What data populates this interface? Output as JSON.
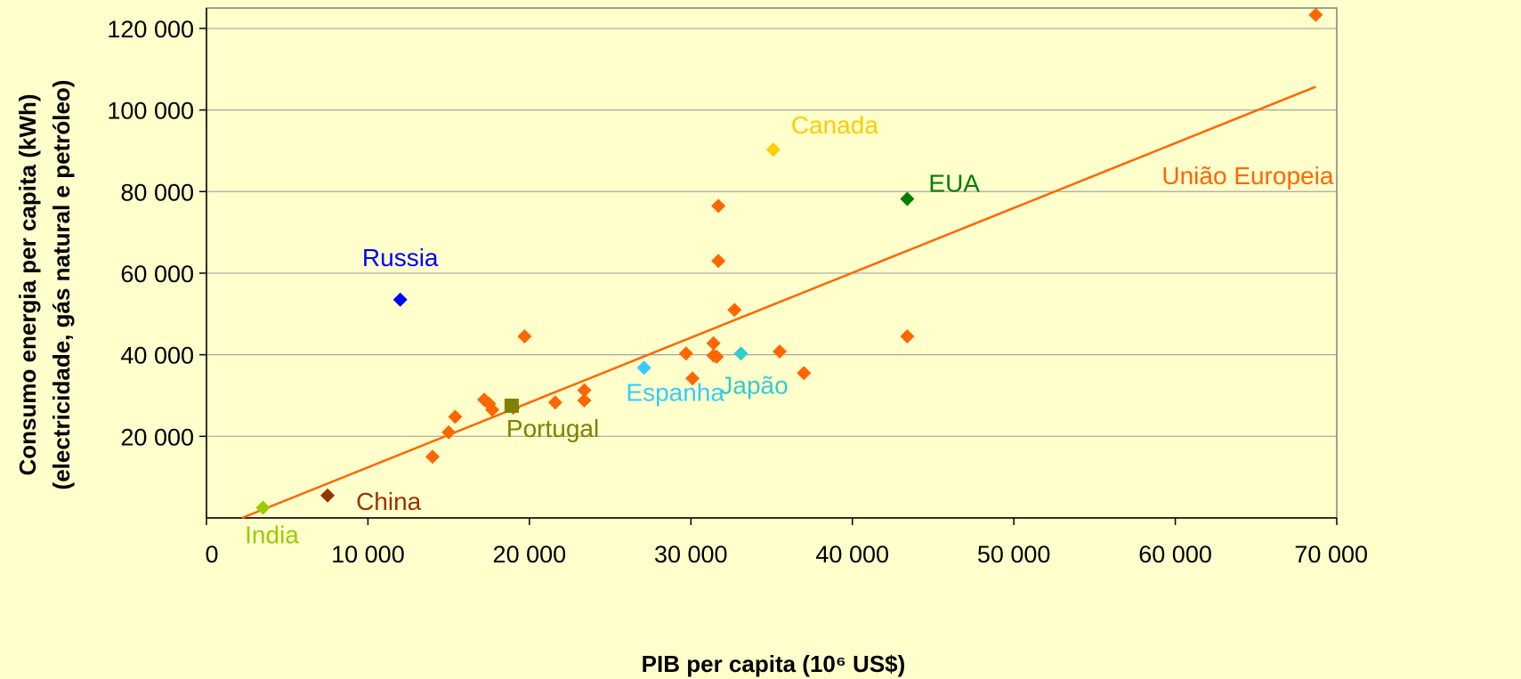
{
  "chart_data": {
    "type": "scatter",
    "xlabel": "PIB per capita (10⁶ US$)",
    "ylabel_line1": "Consumo energia per capita (kWh)",
    "ylabel_line2": "(electricidade, gás natural e petróleo)",
    "xlim": [
      0,
      70000
    ],
    "ylim": [
      0,
      125000
    ],
    "x_ticks": [
      0,
      10000,
      20000,
      30000,
      40000,
      50000,
      60000,
      70000
    ],
    "x_tick_labels": [
      "0",
      "10 000",
      "20 000",
      "30 000",
      "40 000",
      "50 000",
      "60 000",
      "70 000"
    ],
    "y_ticks": [
      20000,
      40000,
      60000,
      80000,
      100000,
      120000
    ],
    "y_tick_labels": [
      "20 000",
      "40 000",
      "60 000",
      "80 000",
      "100 000",
      "120 000"
    ],
    "grid": "horizontal",
    "trendline": {
      "x": [
        2200,
        68700
      ],
      "y": [
        0,
        105700
      ],
      "color": "#ff6600"
    },
    "labeled_points": [
      {
        "label": "Russia",
        "x": 12000,
        "y": 53500,
        "color": "#0000ff",
        "label_color": "#0000ff",
        "marker": "diamond"
      },
      {
        "label": "Canada",
        "x": 35100,
        "y": 90300,
        "color": "#ffcc00",
        "label_color": "#ffcc00",
        "marker": "diamond"
      },
      {
        "label": "EUA",
        "x": 43400,
        "y": 78200,
        "color": "#008000",
        "label_color": "#008000",
        "marker": "diamond"
      },
      {
        "label": "União Europeia",
        "x": 68700,
        "y": 123300,
        "color": "#ff6600",
        "label_color": "#ff6600",
        "marker": "diamond"
      },
      {
        "label": "Espanha",
        "x": 27100,
        "y": 36800,
        "color": "#33ccff",
        "label_color": "#33ccff",
        "marker": "diamond"
      },
      {
        "label": "Japão",
        "x": 33100,
        "y": 40300,
        "color": "#33cccc",
        "label_color": "#33cccc",
        "marker": "diamond"
      },
      {
        "label": "Portugal",
        "x": 18900,
        "y": 27500,
        "color": "#808000",
        "label_color": "#808000",
        "marker": "square"
      },
      {
        "label": "China",
        "x": 7500,
        "y": 5500,
        "color": "#993300",
        "label_color": "#993300",
        "marker": "diamond"
      },
      {
        "label": "India",
        "x": 3500,
        "y": 2500,
        "color": "#99cc00",
        "label_color": "#99cc00",
        "marker": "diamond"
      }
    ],
    "eu_points": {
      "color": "#ff6600",
      "x": [
        14000,
        15000,
        15400,
        17200,
        17500,
        17700,
        19000,
        19700,
        21600,
        23400,
        23400,
        29700,
        30100,
        31400,
        31400,
        31600,
        31700,
        31700,
        32700,
        35500,
        37000,
        43400
      ],
      "y": [
        15000,
        21000,
        24800,
        29000,
        28000,
        26500,
        27000,
        44500,
        28300,
        31300,
        28800,
        40300,
        34200,
        42800,
        39800,
        39500,
        76500,
        63000,
        51000,
        40800,
        35500,
        44500
      ]
    }
  }
}
